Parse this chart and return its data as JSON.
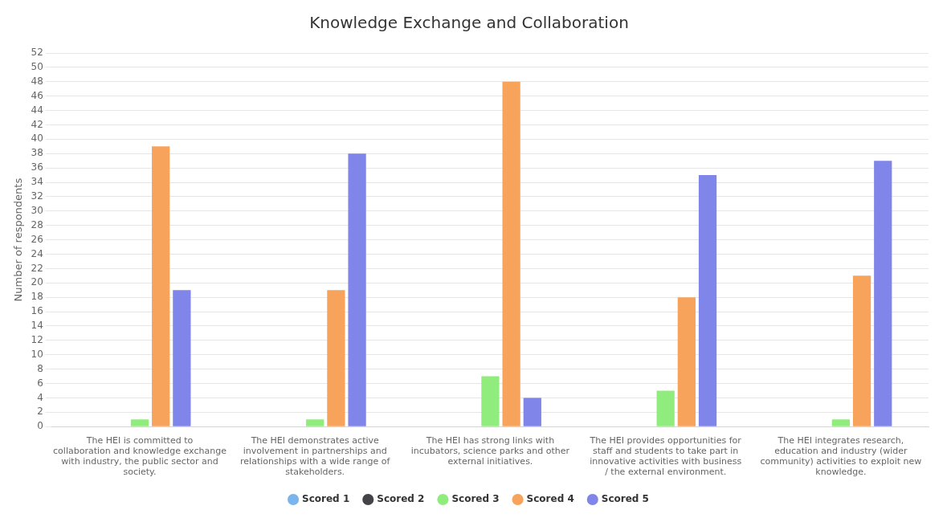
{
  "chart_data": {
    "type": "bar",
    "title": "Knowledge Exchange and Collaboration",
    "ylabel": "Number of respondents",
    "categories": [
      "The HEI is committed to collaboration and knowledge exchange with industry, the public sector and society.",
      "The HEI demonstrates active involvement in partnerships and relationships with a wide range of stakeholders.",
      "The HEI has strong links with incubators, science parks and other external initiatives.",
      "The HEI provides opportunities for staff and students to take part in innovative activities with business / the external environment.",
      "The HEI integrates research, education and industry (wider community) activities to exploit new knowledge."
    ],
    "series": [
      {
        "name": "Scored 1",
        "color": "#7cb5ec",
        "values": [
          0,
          0,
          0,
          0,
          0
        ]
      },
      {
        "name": "Scored 2",
        "color": "#434348",
        "values": [
          0,
          0,
          0,
          0,
          0
        ]
      },
      {
        "name": "Scored 3",
        "color": "#90ed7d",
        "values": [
          1,
          1,
          7,
          5,
          1
        ]
      },
      {
        "name": "Scored 4",
        "color": "#f7a35c",
        "values": [
          39,
          19,
          48,
          18,
          21
        ]
      },
      {
        "name": "Scored 5",
        "color": "#8085e9",
        "values": [
          19,
          38,
          4,
          35,
          37
        ]
      }
    ],
    "ylim": [
      0,
      52
    ],
    "yticks": [
      0,
      2,
      4,
      6,
      8,
      10,
      12,
      14,
      16,
      18,
      20,
      22,
      24,
      26,
      28,
      30,
      32,
      34,
      36,
      38,
      40,
      42,
      44,
      46,
      48,
      50,
      52
    ],
    "grid": "y",
    "legend": "bottom"
  }
}
